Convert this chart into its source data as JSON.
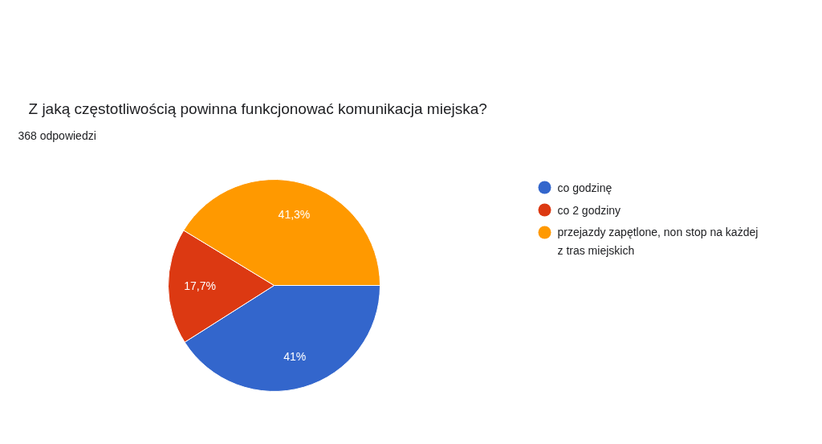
{
  "chart_data": {
    "type": "pie",
    "title": "Z jaką częstotliwością powinna funkcjonować komunikacja miejska?",
    "subtitle": "368 odpowiedzi",
    "categories": [
      "co godzinę",
      "co 2 godziny",
      "przejazdy zapętlone, non stop na każdej z tras miejskich"
    ],
    "values": [
      41,
      17.7,
      41.3
    ],
    "value_labels": [
      "41%",
      "17,7%",
      "41,3%"
    ],
    "colors": [
      "#3366cc",
      "#dc3912",
      "#ff9900"
    ],
    "legend": "right"
  }
}
